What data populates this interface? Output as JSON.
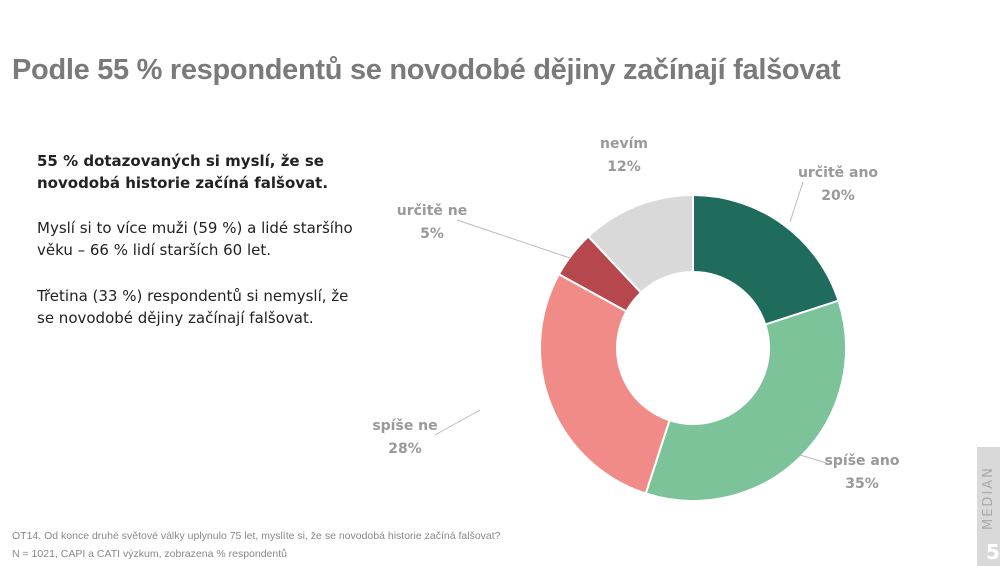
{
  "title": "Podle 55 % respondentů se novodobé dějiny začínají falšovat",
  "text": {
    "p1": "55 % dotazovaných si myslí, že se novodobá historie začíná falšovat.",
    "p2": "Myslí si to více muži (59 %) a lidé staršího věku – 66 % lidí starších 60 let.",
    "p3": "Třetina (33 %) respondentů si nemyslí, že se novodobé dějiny začínají falšovat."
  },
  "footnote": {
    "question": "OT14. Od konce druhé světové války uplynulo 75 let, myslíte si, že se novodobá historie začíná falšovat?",
    "sample": "N = 1021, CAPI a CATI výzkum, zobrazena % respondentů"
  },
  "brand": "MEDIAN",
  "page": "5",
  "chart_data": {
    "type": "pie",
    "variant": "donut",
    "title": "",
    "categories": [
      "určitě ano",
      "spíše ano",
      "spíše ne",
      "určitě ne",
      "nevím"
    ],
    "values": [
      20,
      35,
      28,
      5,
      12
    ],
    "labels": [
      "20%",
      "35%",
      "28%",
      "5%",
      "12%"
    ],
    "colors": [
      "#1f6b5c",
      "#7cc39a",
      "#f08b88",
      "#b5474d",
      "#d9d9d9"
    ]
  }
}
